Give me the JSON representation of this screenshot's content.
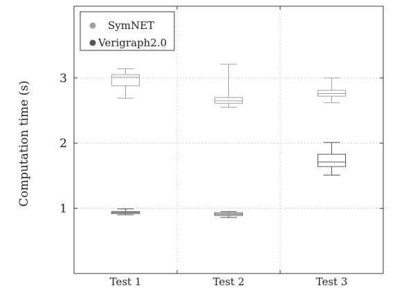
{
  "chart_data": {
    "type": "box",
    "title": "",
    "xlabel": "",
    "ylabel": "Computation time (s)",
    "ylim": [
      0,
      4.1
    ],
    "yticks": [
      1,
      2,
      3
    ],
    "ytick_labels": [
      "1",
      "2",
      "3"
    ],
    "categories": [
      "Test 1",
      "Test 2",
      "Test 3"
    ],
    "grid": true,
    "legend_position": "top-left",
    "series": [
      {
        "name": "SymNET",
        "color": "#a0a0a0",
        "boxes": [
          {
            "min": 2.69,
            "q1": 2.88,
            "median": 3.01,
            "q3": 3.05,
            "max": 3.14
          },
          {
            "min": 2.55,
            "q1": 2.61,
            "median": 2.65,
            "q3": 2.7,
            "max": 3.21
          },
          {
            "min": 2.62,
            "q1": 2.72,
            "median": 2.76,
            "q3": 2.81,
            "max": 3.0
          }
        ]
      },
      {
        "name": "Verigraph2.0",
        "color": "#555555",
        "boxes": [
          {
            "min": 0.9,
            "q1": 0.92,
            "median": 0.935,
            "q3": 0.95,
            "max": 0.99
          },
          {
            "min": 0.86,
            "q1": 0.89,
            "median": 0.91,
            "q3": 0.93,
            "max": 0.95
          },
          {
            "min": 1.51,
            "q1": 1.64,
            "median": 1.71,
            "q3": 1.83,
            "max": 2.01
          }
        ]
      }
    ]
  }
}
